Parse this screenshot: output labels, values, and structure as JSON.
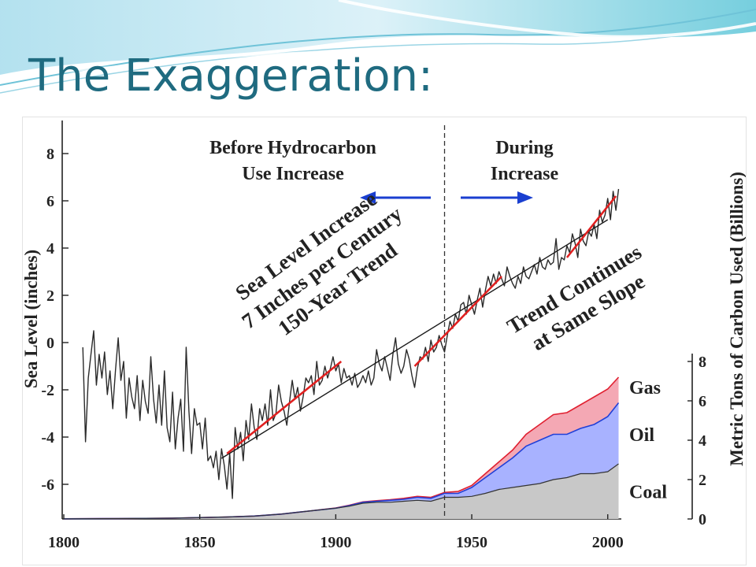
{
  "slide": {
    "title": "The Exaggeration:"
  },
  "chart_data": {
    "type": "line",
    "xlim": [
      1800,
      2005
    ],
    "x_ticks": [
      1800,
      1850,
      1900,
      1950,
      2000
    ],
    "ylabel": "Sea Level (inches)",
    "ylim": [
      -7,
      9
    ],
    "y_ticks": [
      -6,
      -4,
      -2,
      0,
      2,
      4,
      6,
      8
    ],
    "y2label": "Metric Tons of Carbon Used (Billions)",
    "y2lim": [
      0,
      8
    ],
    "y2_ticks": [
      0,
      2,
      4,
      6,
      8
    ],
    "grid": false,
    "divider_year": 1940,
    "annotations": {
      "before": [
        "Before Hydrocarbon",
        "Use Increase"
      ],
      "during": [
        "During",
        "Increase"
      ],
      "trend": [
        "Sea Level Increase",
        "7 Inches per Century",
        "150-Year Trend"
      ],
      "continues": [
        "Trend Continues",
        "at Same Slope"
      ]
    },
    "sea_level": {
      "x": [
        1807,
        1808,
        1809,
        1810,
        1811,
        1812,
        1813,
        1814,
        1815,
        1816,
        1817,
        1818,
        1819,
        1820,
        1821,
        1822,
        1823,
        1824,
        1825,
        1826,
        1827,
        1828,
        1829,
        1830,
        1831,
        1832,
        1833,
        1834,
        1835,
        1836,
        1837,
        1838,
        1839,
        1840,
        1841,
        1842,
        1843,
        1844,
        1845,
        1846,
        1847,
        1848,
        1849,
        1850,
        1851,
        1852,
        1853,
        1854,
        1855,
        1856,
        1857,
        1858,
        1859,
        1860,
        1861,
        1862,
        1863,
        1864,
        1865,
        1866,
        1867,
        1868,
        1869,
        1870,
        1871,
        1872,
        1873,
        1874,
        1875,
        1876,
        1877,
        1878,
        1879,
        1880,
        1881,
        1882,
        1883,
        1884,
        1885,
        1886,
        1887,
        1888,
        1889,
        1890,
        1891,
        1892,
        1893,
        1894,
        1895,
        1896,
        1897,
        1898,
        1899,
        1900,
        1901,
        1902,
        1903,
        1904,
        1905,
        1906,
        1907,
        1908,
        1909,
        1910,
        1911,
        1912,
        1913,
        1914,
        1915,
        1916,
        1917,
        1918,
        1919,
        1920,
        1921,
        1922,
        1923,
        1924,
        1925,
        1926,
        1927,
        1928,
        1929,
        1930,
        1931,
        1932,
        1933,
        1934,
        1935,
        1936,
        1937,
        1938,
        1939,
        1940,
        1941,
        1942,
        1943,
        1944,
        1945,
        1946,
        1947,
        1948,
        1949,
        1950,
        1951,
        1952,
        1953,
        1954,
        1955,
        1956,
        1957,
        1958,
        1959,
        1960,
        1961,
        1962,
        1963,
        1964,
        1965,
        1966,
        1967,
        1968,
        1969,
        1970,
        1971,
        1972,
        1973,
        1974,
        1975,
        1976,
        1977,
        1978,
        1979,
        1980,
        1981,
        1982,
        1983,
        1984,
        1985,
        1986,
        1987,
        1988,
        1989,
        1990,
        1991,
        1992,
        1993,
        1994,
        1995,
        1996,
        1997,
        1998,
        1999,
        2000,
        2001,
        2002,
        2003,
        2004
      ],
      "y": [
        -0.2,
        -4.2,
        -1.5,
        -0.5,
        0.5,
        -1.8,
        -0.5,
        -1.5,
        -0.4,
        -2.2,
        -1.2,
        -2.8,
        -1.2,
        0.2,
        -1.6,
        -0.8,
        -3.2,
        -1.5,
        -2.3,
        -2.8,
        -1.4,
        -3.3,
        -1.6,
        -2.5,
        -3,
        -0.6,
        -2.4,
        -3.4,
        -1.8,
        -3.5,
        -1.2,
        -3.6,
        -4.2,
        -2.1,
        -4.5,
        -3.2,
        -2.4,
        -4.6,
        -0.2,
        -2.9,
        -4.7,
        -2.8,
        -3.5,
        -3.4,
        -4.5,
        -3.2,
        -5,
        -4.8,
        -5.3,
        -4.6,
        -5.8,
        -4.5,
        -5.2,
        -6.2,
        -4.7,
        -6.6,
        -3.6,
        -4.5,
        -3.8,
        -5,
        -3.3,
        -4.1,
        -2.6,
        -3.6,
        -4.1,
        -2.8,
        -3.3,
        -2.6,
        -3.5,
        -2,
        -3.3,
        -3,
        -1.8,
        -2.5,
        -2.9,
        -3.5,
        -2.5,
        -1.6,
        -2.4,
        -1.9,
        -2.9,
        -2.3,
        -1.5,
        -1.7,
        -1.4,
        -2.2,
        -0.8,
        -1.8,
        -1.6,
        -1,
        -1.5,
        -1.1,
        -0.6,
        -1.2,
        -0.9,
        -1.7,
        -1.1,
        -1.5,
        -1.4,
        -1.8,
        -1.3,
        -1.9,
        -1.7,
        -1.4,
        -1.7,
        -1.2,
        -1.8,
        -1.5,
        -0.3,
        -0.9,
        -1.2,
        -0.6,
        -1.1,
        -1.6,
        -0.5,
        0.2,
        -0.9,
        -1.3,
        -1,
        -0.3,
        -0.7,
        -1.4,
        -1.9,
        -1.1,
        -0.6,
        -0.7,
        -0.2,
        -0.8,
        0.1,
        -0.4,
        -0.2,
        0.3,
        -0.1,
        -0.4,
        0.3,
        0.9,
        0.6,
        1.2,
        0.9,
        1.6,
        1.7,
        1.2,
        2,
        1.6,
        1.2,
        1.8,
        2.3,
        1.5,
        2.2,
        2.8,
        2.4,
        2.9,
        2.5,
        3,
        2.7,
        2.4,
        3.2,
        2.8,
        2.5,
        2.3,
        2.8,
        2.5,
        3.2,
        2.8,
        2.7,
        3,
        3.3,
        2.9,
        3.6,
        3.2,
        3.1,
        3.5,
        3.3,
        3.4,
        4.4,
        3.1,
        3.6,
        3.5,
        4.1,
        3.8,
        4.6,
        4.2,
        3.6,
        4.8,
        4.3,
        4.1,
        4.7,
        4.5,
        5,
        4.4,
        5.6,
        5.1,
        5.4,
        6.1,
        5.2,
        6.4,
        5.6,
        6.5
      ]
    },
    "trend_lines": [
      {
        "name": "150-year trend",
        "x": [
          1858,
          2000
        ],
        "y": [
          -4.9,
          5.2
        ]
      },
      {
        "name": "segment 1",
        "x": [
          1860,
          1902
        ],
        "y": [
          -4.7,
          -0.8
        ]
      },
      {
        "name": "segment 2",
        "x": [
          1929,
          1961
        ],
        "y": [
          -1,
          2.8
        ]
      },
      {
        "name": "segment 3",
        "x": [
          1985,
          2003
        ],
        "y": [
          3.6,
          6.2
        ]
      }
    ],
    "carbon_series": [
      {
        "name": "Coal",
        "x": [
          1800,
          1820,
          1840,
          1860,
          1870,
          1880,
          1890,
          1900,
          1905,
          1910,
          1915,
          1920,
          1925,
          1930,
          1935,
          1940,
          1945,
          1950,
          1955,
          1960,
          1965,
          1970,
          1975,
          1980,
          1985,
          1990,
          1995,
          2000,
          2004
        ],
        "values": [
          0.01,
          0.02,
          0.04,
          0.1,
          0.15,
          0.25,
          0.4,
          0.55,
          0.65,
          0.8,
          0.85,
          0.85,
          0.9,
          0.95,
          0.9,
          1.1,
          1.1,
          1.15,
          1.3,
          1.5,
          1.6,
          1.7,
          1.8,
          2,
          2.1,
          2.3,
          2.3,
          2.4,
          2.8
        ]
      },
      {
        "name": "Oil",
        "x": [
          1800,
          1820,
          1840,
          1860,
          1870,
          1880,
          1890,
          1900,
          1905,
          1910,
          1915,
          1920,
          1925,
          1930,
          1935,
          1940,
          1945,
          1950,
          1955,
          1960,
          1965,
          1970,
          1975,
          1980,
          1985,
          1990,
          1995,
          2000,
          2004
        ],
        "values": [
          0.01,
          0.02,
          0.04,
          0.1,
          0.15,
          0.25,
          0.4,
          0.55,
          0.68,
          0.85,
          0.9,
          0.95,
          1,
          1.1,
          1.05,
          1.3,
          1.3,
          1.6,
          2.1,
          2.6,
          3.1,
          3.7,
          4,
          4.3,
          4.3,
          4.6,
          4.8,
          5.2,
          5.9
        ]
      },
      {
        "name": "Gas",
        "x": [
          1800,
          1820,
          1840,
          1860,
          1870,
          1880,
          1890,
          1900,
          1905,
          1910,
          1915,
          1920,
          1925,
          1930,
          1935,
          1940,
          1945,
          1950,
          1955,
          1960,
          1965,
          1970,
          1975,
          1980,
          1985,
          1990,
          1995,
          2000,
          2004
        ],
        "values": [
          0.01,
          0.02,
          0.04,
          0.1,
          0.15,
          0.25,
          0.4,
          0.56,
          0.7,
          0.87,
          0.93,
          0.98,
          1.05,
          1.15,
          1.1,
          1.35,
          1.4,
          1.7,
          2.3,
          2.9,
          3.5,
          4.3,
          4.8,
          5.3,
          5.4,
          5.8,
          6.2,
          6.6,
          7.2
        ]
      }
    ],
    "colors": {
      "sea_level": "#2a2a2a",
      "trend": "#1a1a1a",
      "segments": "#e02020",
      "arrows": "#1a3fd0",
      "coal_fill": "#c8c8c8",
      "oil_fill": "#a8b2ff",
      "gas_fill": "#f4a8b4",
      "oil_line": "#2040d8",
      "gas_line": "#e02030"
    }
  }
}
